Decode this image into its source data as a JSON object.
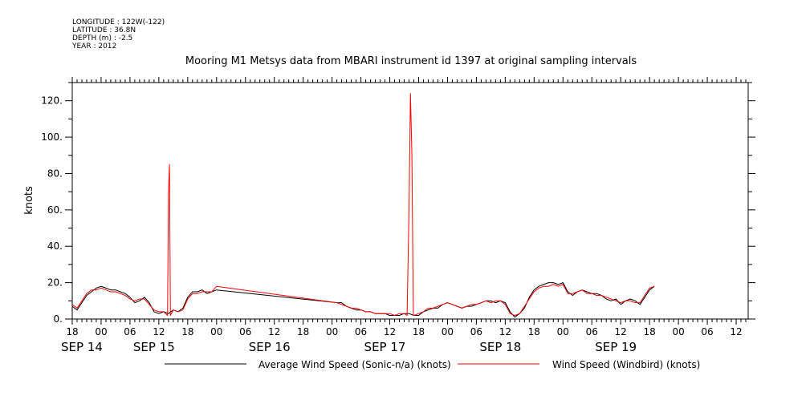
{
  "metadata": {
    "longitude": "LONGITUDE : 122W(-122)",
    "latitude": "LATITUDE : 36.8N",
    "depth": "DEPTH (m) : -2.5",
    "year": "YEAR : 2012"
  },
  "chart_data": {
    "type": "line",
    "title": "Mooring M1 Metsys data from MBARI instrument id 1397 at original sampling intervals",
    "ylabel": "knots",
    "xlabel": "",
    "xlim_hours": [
      -6,
      134.5
    ],
    "ylim": [
      0,
      130
    ],
    "y_ticks": [
      0,
      20,
      40,
      60,
      80,
      100,
      120
    ],
    "y_tick_labels": [
      "0.",
      "20.",
      "40.",
      "60.",
      "80.",
      "100.",
      "120."
    ],
    "x_hour_ticks": [
      {
        "h": -6,
        "label": "18"
      },
      {
        "h": 0,
        "label": "00"
      },
      {
        "h": 6,
        "label": "06"
      },
      {
        "h": 12,
        "label": "12"
      },
      {
        "h": 18,
        "label": "18"
      },
      {
        "h": 24,
        "label": "00"
      },
      {
        "h": 30,
        "label": "06"
      },
      {
        "h": 36,
        "label": "12"
      },
      {
        "h": 42,
        "label": "18"
      },
      {
        "h": 48,
        "label": "00"
      },
      {
        "h": 54,
        "label": "06"
      },
      {
        "h": 60,
        "label": "12"
      },
      {
        "h": 66,
        "label": "18"
      },
      {
        "h": 72,
        "label": "00"
      },
      {
        "h": 78,
        "label": "06"
      },
      {
        "h": 84,
        "label": "12"
      },
      {
        "h": 90,
        "label": "18"
      },
      {
        "h": 96,
        "label": "00"
      },
      {
        "h": 102,
        "label": "06"
      },
      {
        "h": 108,
        "label": "12"
      },
      {
        "h": 114,
        "label": "18"
      },
      {
        "h": 120,
        "label": "00"
      },
      {
        "h": 126,
        "label": "06"
      },
      {
        "h": 132,
        "label": "12"
      }
    ],
    "date_labels": [
      {
        "h": -6,
        "label": "SEP 14"
      },
      {
        "h": 9,
        "label": "SEP 15"
      },
      {
        "h": 33,
        "label": "SEP 16"
      },
      {
        "h": 57,
        "label": "SEP 17"
      },
      {
        "h": 81,
        "label": "SEP 18"
      },
      {
        "h": 105,
        "label": "SEP 19"
      }
    ],
    "legend": "bottom",
    "series": [
      {
        "name": "Average Wind Speed (Sonic-n/a) (knots)",
        "color": "#000000",
        "points": [
          [
            -6,
            7
          ],
          [
            -5,
            5
          ],
          [
            -4,
            9
          ],
          [
            -3,
            13
          ],
          [
            -2,
            15
          ],
          [
            -1,
            17
          ],
          [
            0,
            18
          ],
          [
            1,
            17
          ],
          [
            2,
            16
          ],
          [
            3,
            16
          ],
          [
            4,
            15
          ],
          [
            5,
            14
          ],
          [
            6,
            12
          ],
          [
            7,
            9
          ],
          [
            8,
            10
          ],
          [
            9,
            12
          ],
          [
            10,
            9
          ],
          [
            11,
            4
          ],
          [
            12,
            3
          ],
          [
            13,
            4
          ],
          [
            14,
            3
          ],
          [
            15,
            5
          ],
          [
            16,
            4
          ],
          [
            17,
            6
          ],
          [
            18,
            12
          ],
          [
            19,
            15
          ],
          [
            20,
            15
          ],
          [
            21,
            16
          ],
          [
            22,
            14
          ],
          [
            23,
            15
          ],
          [
            24,
            16
          ],
          [
            49,
            9
          ],
          [
            50,
            9
          ],
          [
            51,
            7
          ],
          [
            52,
            6
          ],
          [
            53,
            5
          ],
          [
            54,
            5
          ],
          [
            55,
            4
          ],
          [
            56,
            4
          ],
          [
            57,
            3
          ],
          [
            58,
            3
          ],
          [
            59,
            3
          ],
          [
            60,
            2
          ],
          [
            61,
            2
          ],
          [
            62,
            2
          ],
          [
            63,
            3
          ],
          [
            64,
            3
          ],
          [
            65,
            2
          ],
          [
            66,
            2
          ],
          [
            67,
            4
          ],
          [
            68,
            5
          ],
          [
            69,
            6
          ],
          [
            70,
            6
          ],
          [
            71,
            8
          ],
          [
            72,
            9
          ],
          [
            73,
            8
          ],
          [
            74,
            7
          ],
          [
            75,
            6
          ],
          [
            76,
            7
          ],
          [
            77,
            7
          ],
          [
            78,
            8
          ],
          [
            79,
            9
          ],
          [
            80,
            10
          ],
          [
            81,
            10
          ],
          [
            82,
            9
          ],
          [
            83,
            10
          ],
          [
            84,
            9
          ],
          [
            85,
            4
          ],
          [
            86,
            1
          ],
          [
            87,
            3
          ],
          [
            88,
            6
          ],
          [
            89,
            12
          ],
          [
            90,
            16
          ],
          [
            91,
            18
          ],
          [
            92,
            19
          ],
          [
            93,
            20
          ],
          [
            94,
            20
          ],
          [
            95,
            19
          ],
          [
            96,
            20
          ],
          [
            97,
            15
          ],
          [
            98,
            13
          ],
          [
            99,
            15
          ],
          [
            100,
            16
          ],
          [
            101,
            15
          ],
          [
            102,
            14
          ],
          [
            103,
            14
          ],
          [
            104,
            13
          ],
          [
            105,
            11
          ],
          [
            106,
            10
          ],
          [
            107,
            11
          ],
          [
            108,
            8
          ],
          [
            109,
            10
          ],
          [
            110,
            11
          ],
          [
            111,
            10
          ],
          [
            112,
            8
          ],
          [
            113,
            12
          ],
          [
            114,
            16
          ],
          [
            115,
            18
          ]
        ]
      },
      {
        "name": "Wind Speed (Windbird) (knots)",
        "color": "#ff0000",
        "points": [
          [
            -6,
            8
          ],
          [
            -5,
            6
          ],
          [
            -4,
            10
          ],
          [
            -3,
            14
          ],
          [
            -2,
            16
          ],
          [
            -1,
            16
          ],
          [
            0,
            17
          ],
          [
            1,
            16
          ],
          [
            2,
            15
          ],
          [
            3,
            15
          ],
          [
            4,
            14
          ],
          [
            5,
            13
          ],
          [
            6,
            11
          ],
          [
            7,
            10
          ],
          [
            8,
            11
          ],
          [
            9,
            11
          ],
          [
            10,
            8
          ],
          [
            11,
            5
          ],
          [
            12,
            4
          ],
          [
            13,
            4
          ],
          [
            13.8,
            2
          ],
          [
            14,
            70
          ],
          [
            14.2,
            85
          ],
          [
            14.4,
            2
          ],
          [
            15,
            5
          ],
          [
            16,
            4
          ],
          [
            17,
            5
          ],
          [
            18,
            11
          ],
          [
            19,
            14
          ],
          [
            20,
            14
          ],
          [
            21,
            15
          ],
          [
            22,
            15
          ],
          [
            23,
            15
          ],
          [
            24,
            18
          ],
          [
            49,
            9
          ],
          [
            50,
            8
          ],
          [
            51,
            7
          ],
          [
            52,
            6
          ],
          [
            53,
            6
          ],
          [
            54,
            5
          ],
          [
            55,
            4
          ],
          [
            56,
            4
          ],
          [
            57,
            3
          ],
          [
            58,
            3
          ],
          [
            59,
            3
          ],
          [
            60,
            3
          ],
          [
            61,
            2
          ],
          [
            62,
            3
          ],
          [
            63,
            3
          ],
          [
            63.6,
            2
          ],
          [
            64,
            60
          ],
          [
            64.3,
            124
          ],
          [
            64.6,
            90
          ],
          [
            64.9,
            2
          ],
          [
            65,
            2
          ],
          [
            66,
            3
          ],
          [
            67,
            4
          ],
          [
            68,
            6
          ],
          [
            69,
            6
          ],
          [
            70,
            7
          ],
          [
            71,
            8
          ],
          [
            72,
            9
          ],
          [
            73,
            8
          ],
          [
            74,
            7
          ],
          [
            75,
            6
          ],
          [
            76,
            7
          ],
          [
            77,
            8
          ],
          [
            78,
            8
          ],
          [
            79,
            9
          ],
          [
            80,
            10
          ],
          [
            81,
            9
          ],
          [
            82,
            10
          ],
          [
            83,
            10
          ],
          [
            84,
            8
          ],
          [
            85,
            3
          ],
          [
            86,
            2
          ],
          [
            87,
            3
          ],
          [
            88,
            7
          ],
          [
            89,
            11
          ],
          [
            90,
            15
          ],
          [
            91,
            17
          ],
          [
            92,
            18
          ],
          [
            93,
            18
          ],
          [
            94,
            19
          ],
          [
            95,
            18
          ],
          [
            96,
            19
          ],
          [
            97,
            14
          ],
          [
            98,
            14
          ],
          [
            99,
            15
          ],
          [
            100,
            16
          ],
          [
            101,
            14
          ],
          [
            102,
            14
          ],
          [
            103,
            13
          ],
          [
            104,
            13
          ],
          [
            105,
            12
          ],
          [
            106,
            11
          ],
          [
            107,
            10
          ],
          [
            108,
            9
          ],
          [
            109,
            10
          ],
          [
            110,
            10
          ],
          [
            111,
            9
          ],
          [
            112,
            9
          ],
          [
            113,
            13
          ],
          [
            114,
            17
          ],
          [
            115,
            18
          ]
        ]
      }
    ]
  }
}
